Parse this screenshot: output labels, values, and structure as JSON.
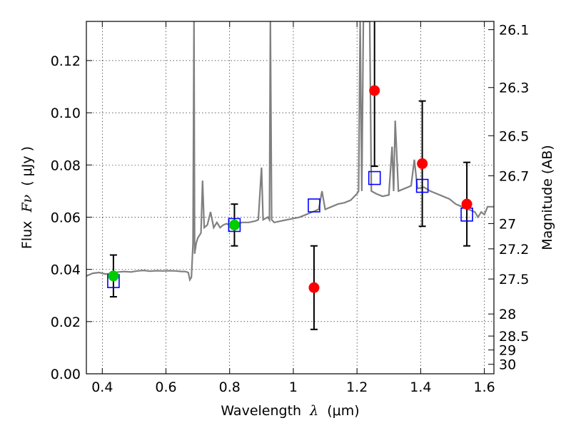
{
  "chart_data": {
    "type": "line",
    "xlabel_prefix": "Wavelength",
    "xlabel_symbol": "λ",
    "xlabel_unit": "(μm)",
    "ylabel_prefix": "Flux",
    "ylabel_symbol": "Fν",
    "ylabel_unit": "( μJy )",
    "y2label": "Magnitude (AB)",
    "xlim": [
      0.35,
      1.63
    ],
    "ylim": [
      0.0,
      0.135
    ],
    "grid": true,
    "x_ticks": [
      {
        "value": 0.4,
        "label": "0.4"
      },
      {
        "value": 0.6,
        "label": "0.6"
      },
      {
        "value": 0.8,
        "label": "0.8"
      },
      {
        "value": 1.0,
        "label": "1"
      },
      {
        "value": 1.2,
        "label": "1.2"
      },
      {
        "value": 1.4,
        "label": "1.4"
      },
      {
        "value": 1.6,
        "label": "1.6"
      }
    ],
    "y_ticks": [
      {
        "value": 0.0,
        "label": "0.00"
      },
      {
        "value": 0.02,
        "label": "0.02"
      },
      {
        "value": 0.04,
        "label": "0.04"
      },
      {
        "value": 0.06,
        "label": "0.06"
      },
      {
        "value": 0.08,
        "label": "0.08"
      },
      {
        "value": 0.1,
        "label": "0.10"
      },
      {
        "value": 0.12,
        "label": "0.12"
      }
    ],
    "y2_ticks": [
      {
        "mag": 26.1,
        "label": "26.1"
      },
      {
        "mag": 26.3,
        "label": "26.3"
      },
      {
        "mag": 26.5,
        "label": "26.5"
      },
      {
        "mag": 26.7,
        "label": "26.7"
      },
      {
        "mag": 27.0,
        "label": "27"
      },
      {
        "mag": 27.2,
        "label": "27.2"
      },
      {
        "mag": 27.5,
        "label": "27.5"
      },
      {
        "mag": 28.0,
        "label": "28"
      },
      {
        "mag": 28.5,
        "label": "28.5"
      },
      {
        "mag": 29.0,
        "label": "29"
      },
      {
        "mag": 30.0,
        "label": "30"
      }
    ],
    "series": [
      {
        "kind": "spectrum",
        "color": "#808080",
        "points": [
          [
            0.35,
            0.0375
          ],
          [
            0.37,
            0.0385
          ],
          [
            0.39,
            0.0388
          ],
          [
            0.41,
            0.0382
          ],
          [
            0.43,
            0.0385
          ],
          [
            0.45,
            0.039
          ],
          [
            0.47,
            0.0392
          ],
          [
            0.49,
            0.039
          ],
          [
            0.51,
            0.0394
          ],
          [
            0.53,
            0.0396
          ],
          [
            0.55,
            0.0393
          ],
          [
            0.57,
            0.0395
          ],
          [
            0.59,
            0.0394
          ],
          [
            0.61,
            0.0395
          ],
          [
            0.63,
            0.0394
          ],
          [
            0.65,
            0.0392
          ],
          [
            0.66,
            0.0392
          ],
          [
            0.67,
            0.0388
          ],
          [
            0.675,
            0.036
          ],
          [
            0.68,
            0.037
          ],
          [
            0.685,
            0.05
          ],
          [
            0.688,
            0.135
          ],
          [
            0.69,
            0.046
          ],
          [
            0.695,
            0.05
          ],
          [
            0.7,
            0.052
          ],
          [
            0.71,
            0.054
          ],
          [
            0.715,
            0.074
          ],
          [
            0.72,
            0.056
          ],
          [
            0.73,
            0.057
          ],
          [
            0.74,
            0.062
          ],
          [
            0.75,
            0.056
          ],
          [
            0.76,
            0.058
          ],
          [
            0.77,
            0.056
          ],
          [
            0.78,
            0.057
          ],
          [
            0.79,
            0.0575
          ],
          [
            0.8,
            0.057
          ],
          [
            0.82,
            0.0575
          ],
          [
            0.84,
            0.058
          ],
          [
            0.86,
            0.058
          ],
          [
            0.88,
            0.0585
          ],
          [
            0.89,
            0.059
          ],
          [
            0.9,
            0.079
          ],
          [
            0.905,
            0.059
          ],
          [
            0.92,
            0.06
          ],
          [
            0.925,
            0.059
          ],
          [
            0.928,
            0.135
          ],
          [
            0.932,
            0.059
          ],
          [
            0.94,
            0.058
          ],
          [
            0.96,
            0.0585
          ],
          [
            0.98,
            0.059
          ],
          [
            1.0,
            0.0595
          ],
          [
            1.02,
            0.06
          ],
          [
            1.04,
            0.061
          ],
          [
            1.06,
            0.062
          ],
          [
            1.08,
            0.063
          ],
          [
            1.09,
            0.07
          ],
          [
            1.1,
            0.063
          ],
          [
            1.12,
            0.064
          ],
          [
            1.14,
            0.065
          ],
          [
            1.16,
            0.0655
          ],
          [
            1.18,
            0.0665
          ],
          [
            1.2,
            0.069
          ],
          [
            1.205,
            0.07
          ],
          [
            1.21,
            0.135
          ],
          [
            1.215,
            0.07
          ],
          [
            1.22,
            0.135
          ],
          [
            1.23,
            0.135
          ],
          [
            1.24,
            0.135
          ],
          [
            1.245,
            0.07
          ],
          [
            1.26,
            0.069
          ],
          [
            1.28,
            0.068
          ],
          [
            1.3,
            0.0685
          ],
          [
            1.31,
            0.087
          ],
          [
            1.315,
            0.07
          ],
          [
            1.32,
            0.097
          ],
          [
            1.33,
            0.07
          ],
          [
            1.35,
            0.071
          ],
          [
            1.37,
            0.072
          ],
          [
            1.38,
            0.082
          ],
          [
            1.39,
            0.071
          ],
          [
            1.41,
            0.0715
          ],
          [
            1.43,
            0.07
          ],
          [
            1.45,
            0.069
          ],
          [
            1.47,
            0.068
          ],
          [
            1.49,
            0.067
          ],
          [
            1.51,
            0.065
          ],
          [
            1.53,
            0.064
          ],
          [
            1.55,
            0.063
          ],
          [
            1.57,
            0.062
          ],
          [
            1.58,
            0.06
          ],
          [
            1.59,
            0.062
          ],
          [
            1.6,
            0.061
          ],
          [
            1.61,
            0.064
          ],
          [
            1.62,
            0.064
          ],
          [
            1.63,
            0.064
          ]
        ]
      },
      {
        "kind": "model",
        "color": "#0000ff",
        "marker": "open-square",
        "points": [
          [
            0.435,
            0.0355
          ],
          [
            0.815,
            0.057
          ],
          [
            1.065,
            0.0645
          ],
          [
            1.255,
            0.075
          ],
          [
            1.405,
            0.072
          ],
          [
            1.545,
            0.061
          ]
        ]
      },
      {
        "kind": "observed",
        "points": [
          {
            "x": 0.435,
            "y": 0.0375,
            "err": 0.008,
            "color": "#00cc00"
          },
          {
            "x": 0.815,
            "y": 0.057,
            "err": 0.008,
            "color": "#00cc00"
          },
          {
            "x": 1.065,
            "y": 0.033,
            "err": 0.016,
            "color": "#ff0000"
          },
          {
            "x": 1.255,
            "y": 0.1085,
            "err": 0.029,
            "color": "#ff0000"
          },
          {
            "x": 1.405,
            "y": 0.0805,
            "err": 0.024,
            "color": "#ff0000"
          },
          {
            "x": 1.545,
            "y": 0.065,
            "err": 0.016,
            "color": "#ff0000"
          }
        ]
      }
    ]
  }
}
